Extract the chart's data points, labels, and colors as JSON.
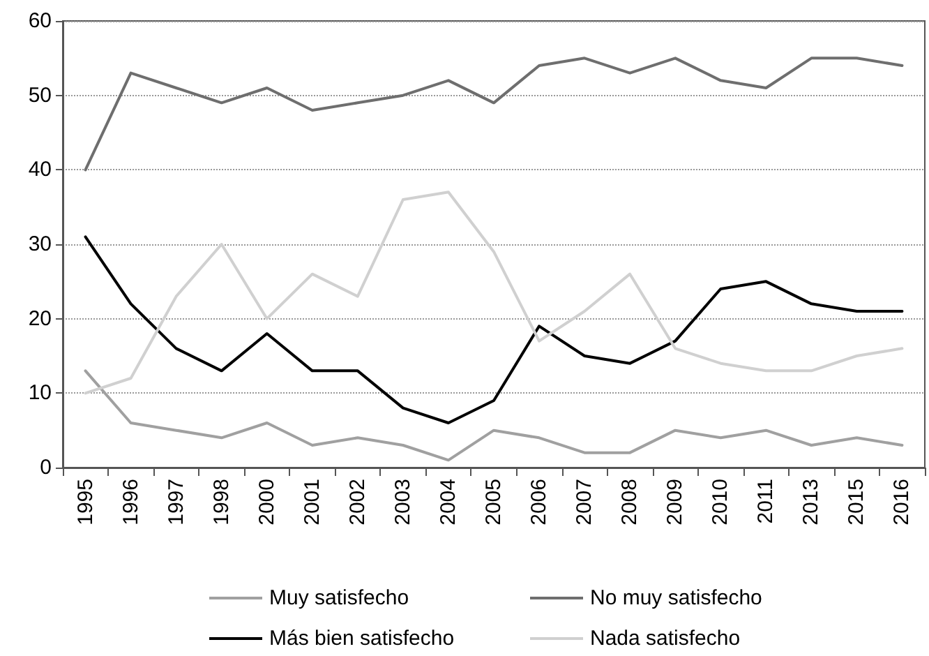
{
  "chart_data": {
    "type": "line",
    "categories": [
      "1995",
      "1996",
      "1997",
      "1998",
      "2000",
      "2001",
      "2002",
      "2003",
      "2004",
      "2005",
      "2006",
      "2007",
      "2008",
      "2009",
      "2010",
      "2011",
      "2013",
      "2015",
      "2016"
    ],
    "series": [
      {
        "name": "Muy satisfecho",
        "color": "#a0a0a0",
        "values": [
          13,
          6,
          5,
          4,
          6,
          3,
          4,
          3,
          1,
          5,
          4,
          2,
          2,
          5,
          4,
          5,
          3,
          4,
          3
        ]
      },
      {
        "name": "No muy satisfecho",
        "color": "#6e6e6e",
        "values": [
          40,
          53,
          51,
          49,
          51,
          48,
          49,
          50,
          52,
          49,
          54,
          55,
          53,
          55,
          52,
          51,
          55,
          55,
          54
        ]
      },
      {
        "name": "Más bien satisfecho",
        "color": "#000000",
        "values": [
          31,
          22,
          16,
          13,
          18,
          13,
          13,
          8,
          6,
          9,
          19,
          15,
          14,
          17,
          24,
          25,
          22,
          21,
          21
        ]
      },
      {
        "name": "Nada satisfecho",
        "color": "#d0d0d0",
        "values": [
          10,
          12,
          23,
          30,
          20,
          26,
          23,
          36,
          37,
          29,
          17,
          21,
          26,
          16,
          14,
          13,
          13,
          15,
          16
        ]
      }
    ],
    "ylim": [
      0,
      60
    ],
    "yticks": [
      0,
      10,
      20,
      30,
      40,
      50,
      60
    ],
    "grid": "y",
    "legend": "bottom",
    "marker": "none",
    "line_style": "solid"
  }
}
